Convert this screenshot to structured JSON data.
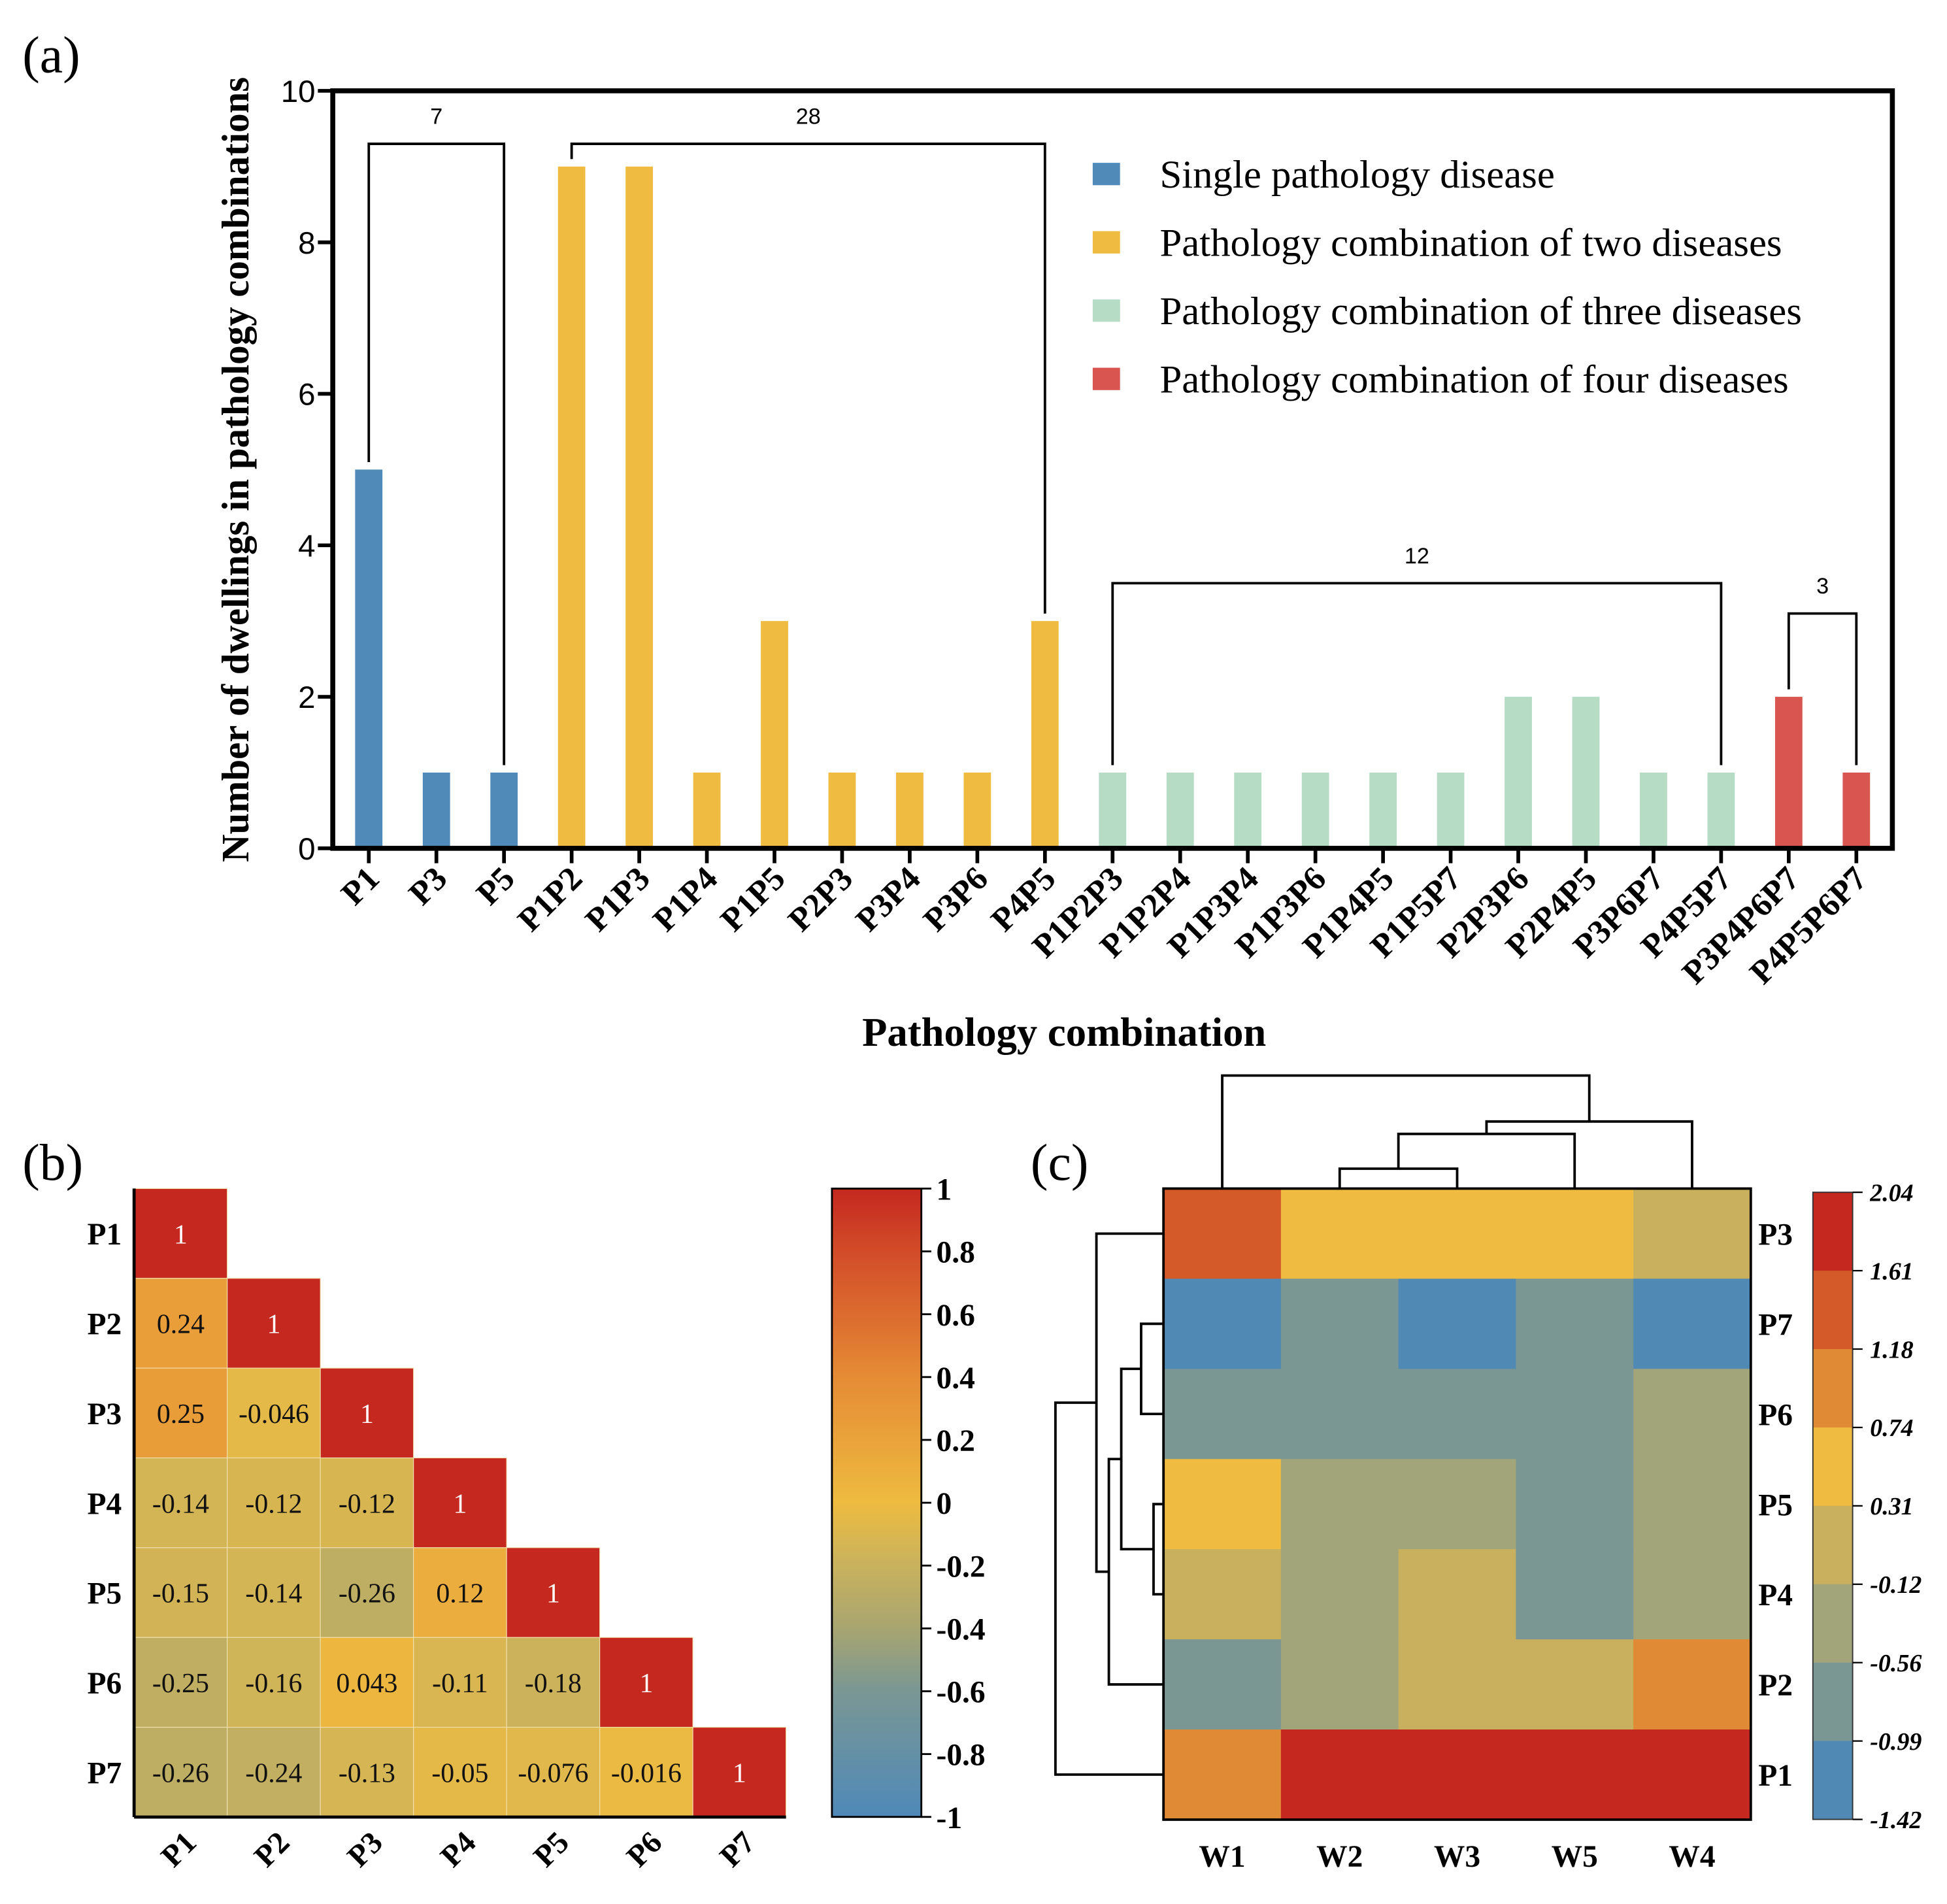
{
  "chart_data": [
    {
      "panel_label": "(a)",
      "type": "bar",
      "xlabel": "Pathology combination",
      "ylabel": "Number of dwellings in pathology combinations",
      "ylim": [
        0,
        10
      ],
      "yticks": [
        "0",
        "2",
        "4",
        "6",
        "8",
        "10"
      ],
      "categories": [
        "P1",
        "P3",
        "P5",
        "P1P2",
        "P1P3",
        "P1P4",
        "P1P5",
        "P2P3",
        "P3P4",
        "P3P6",
        "P4P5",
        "P1P2P3",
        "P1P2P4",
        "P1P3P4",
        "P1P3P6",
        "P1P4P5",
        "P1P5P7",
        "P2P3P6",
        "P2P4P5",
        "P3P6P7",
        "P4P5P7",
        "P3P4P6P7",
        "P4P5P6P7"
      ],
      "values": [
        5,
        1,
        1,
        9,
        9,
        1,
        3,
        1,
        1,
        1,
        3,
        1,
        1,
        1,
        1,
        1,
        1,
        2,
        2,
        1,
        1,
        2,
        1
      ],
      "groups": [
        0,
        0,
        0,
        1,
        1,
        1,
        1,
        1,
        1,
        1,
        1,
        2,
        2,
        2,
        2,
        2,
        2,
        2,
        2,
        2,
        2,
        3,
        3
      ],
      "legend_position": "top-right",
      "series": [
        {
          "name": "Single pathology disease",
          "color": "#4f8ab8"
        },
        {
          "name": "Pathology combination of two diseases",
          "color": "#efbb40"
        },
        {
          "name": "Pathology combination of three diseases",
          "color": "#b6dcc5"
        },
        {
          "name": "Pathology combination of four diseases",
          "color": "#d9554f"
        }
      ],
      "brackets": [
        {
          "from": "P1",
          "to": "P5",
          "level": 9.3,
          "label": "7"
        },
        {
          "from": "P1P2",
          "to": "P4P5",
          "level": 9.3,
          "label": "28"
        },
        {
          "from": "P1P2P3",
          "to": "P4P5P7",
          "level": 3.5,
          "label": "12"
        },
        {
          "from": "P3P4P6P7",
          "to": "P4P5P6P7",
          "level": 3.1,
          "label": "3"
        }
      ]
    },
    {
      "panel_label": "(b)",
      "type": "heatmap",
      "rows": [
        "P1",
        "P2",
        "P3",
        "P4",
        "P5",
        "P6",
        "P7"
      ],
      "cols": [
        "P1",
        "P2",
        "P3",
        "P4",
        "P5",
        "P6",
        "P7"
      ],
      "values": [
        [
          "1"
        ],
        [
          "0.24",
          "1"
        ],
        [
          "0.25",
          "-0.046",
          "1"
        ],
        [
          "-0.14",
          "-0.12",
          "-0.12",
          "1"
        ],
        [
          "-0.15",
          "-0.14",
          "-0.26",
          "0.12",
          "1"
        ],
        [
          "-0.25",
          "-0.16",
          "0.043",
          "-0.11",
          "-0.18",
          "1"
        ],
        [
          "-0.26",
          "-0.24",
          "-0.13",
          "-0.05",
          "-0.076",
          "-0.016",
          "1"
        ]
      ],
      "colorbar_ticks": [
        "1",
        "0.8",
        "0.6",
        "0.4",
        "0.2",
        "0",
        "-0.2",
        "-0.4",
        "-0.6",
        "-0.8",
        "-1"
      ],
      "zlim": [
        -1,
        1
      ]
    },
    {
      "panel_label": "(c)",
      "type": "heatmap",
      "rows": [
        "P3",
        "P7",
        "P6",
        "P5",
        "P4",
        "P2",
        "P1"
      ],
      "cols": [
        "W1",
        "W2",
        "W3",
        "W5",
        "W4"
      ],
      "values": [
        [
          1.4,
          0.5,
          0.5,
          0.5,
          0.1
        ],
        [
          -1.2,
          -0.8,
          -1.2,
          -0.8,
          -1.2
        ],
        [
          -0.8,
          -0.8,
          -0.8,
          -0.8,
          -0.3
        ],
        [
          0.5,
          -0.3,
          -0.3,
          -0.8,
          -0.3
        ],
        [
          0.1,
          -0.3,
          0.1,
          -0.8,
          -0.3
        ],
        [
          -0.8,
          -0.3,
          0.1,
          0.1,
          0.95
        ],
        [
          0.95,
          1.8,
          1.8,
          1.8,
          1.8
        ]
      ],
      "colorbar_ticks": [
        "2.04",
        "1.61",
        "1.18",
        "0.74",
        "0.31",
        "-0.12",
        "-0.56",
        "-0.99",
        "-1.42"
      ],
      "bin_colors": [
        "#c4281f",
        "#d45a2a",
        "#e08a36",
        "#efbb40",
        "#c9b05e",
        "#a2a47a",
        "#7a9794",
        "#4f89b4"
      ]
    }
  ]
}
